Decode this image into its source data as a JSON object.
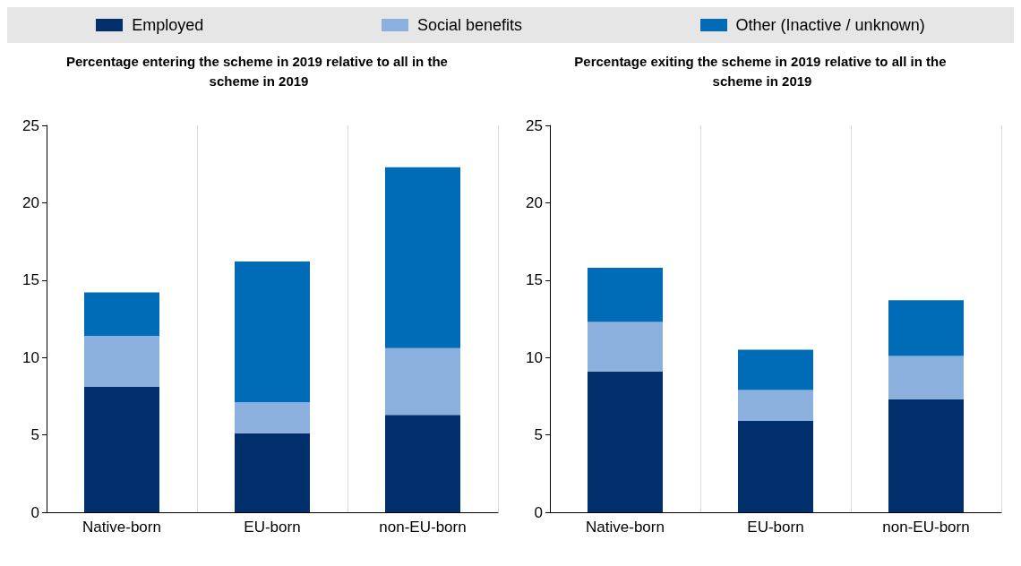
{
  "chart_data": [
    {
      "type": "bar",
      "title": "Percentage entering the scheme in 2019 relative to all in the scheme in 2019",
      "categories": [
        "Native-born",
        "EU-born",
        "non-EU-born"
      ],
      "stacked": true,
      "ylim": [
        0,
        25
      ],
      "yticks": [
        0,
        5,
        10,
        15,
        20,
        25
      ],
      "grid": "x",
      "legend": "top",
      "series": [
        {
          "name": "Employed",
          "color": "#002f6c",
          "values": [
            8.1,
            5.1,
            6.3
          ]
        },
        {
          "name": "Social benefits",
          "color": "#8cb0de",
          "values": [
            3.3,
            2.0,
            4.3
          ]
        },
        {
          "name": "Other (Inactive / unknown)",
          "color": "#006bb6",
          "values": [
            2.8,
            9.1,
            11.7
          ]
        }
      ]
    },
    {
      "type": "bar",
      "title": "Percentage exiting the scheme in 2019 relative to all in the scheme in 2019",
      "categories": [
        "Native-born",
        "EU-born",
        "non-EU-born"
      ],
      "stacked": true,
      "ylim": [
        0,
        25
      ],
      "yticks": [
        0,
        5,
        10,
        15,
        20,
        25
      ],
      "grid": "x",
      "series": [
        {
          "color": "#002f6c",
          "values": [
            9.1,
            5.9,
            7.3
          ]
        },
        {
          "color": "#8cb0de",
          "values": [
            3.2,
            2.0,
            2.8
          ]
        },
        {
          "color": "#006bb6",
          "values": [
            3.5,
            2.6,
            3.6
          ]
        }
      ]
    }
  ]
}
